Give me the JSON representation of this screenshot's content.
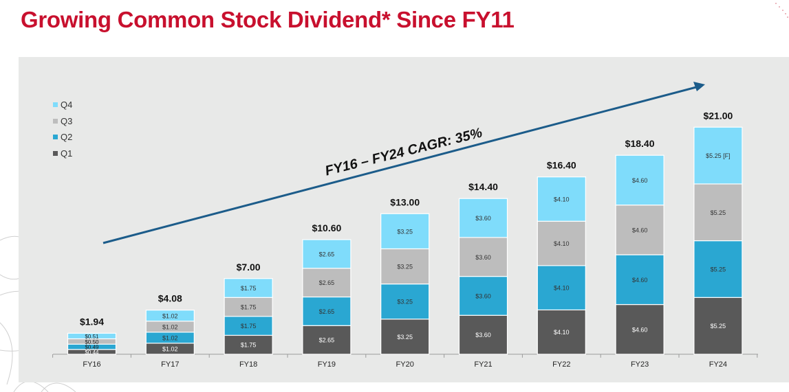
{
  "title": "Growing Common Stock Dividend* Since FY11",
  "cagr_label": "FY16 – FY24 CAGR: 35%",
  "colors": {
    "title": "#c8102e",
    "Q1": "#595959",
    "Q2": "#2aa7d2",
    "Q3": "#bdbdbd",
    "Q4": "#7fdcfb",
    "arrow": "#1c5c8a",
    "panel": "#e8e9e8"
  },
  "legend": [
    {
      "label": "Q4",
      "color": "#7fdcfb"
    },
    {
      "label": "Q3",
      "color": "#bdbdbd"
    },
    {
      "label": "Q2",
      "color": "#2aa7d2"
    },
    {
      "label": "Q1",
      "color": "#595959"
    }
  ],
  "chart_data": {
    "type": "bar",
    "stacked": true,
    "categories": [
      "FY16",
      "FY17",
      "FY18",
      "FY19",
      "FY20",
      "FY21",
      "FY22",
      "FY23",
      "FY24"
    ],
    "series": [
      {
        "name": "Q1",
        "values": [
          0.44,
          1.02,
          1.75,
          2.65,
          3.25,
          3.6,
          4.1,
          4.6,
          5.25
        ],
        "labels": [
          "$0.44",
          "$1.02",
          "$1.75",
          "$2.65",
          "$3.25",
          "$3.60",
          "$4.10",
          "$4.60",
          "$5.25"
        ]
      },
      {
        "name": "Q2",
        "values": [
          0.49,
          1.02,
          1.75,
          2.65,
          3.25,
          3.6,
          4.1,
          4.6,
          5.25
        ],
        "labels": [
          "$0.49",
          "$1.02",
          "$1.75",
          "$2.65",
          "$3.25",
          "$3.60",
          "$4.10",
          "$4.60",
          "$5.25"
        ]
      },
      {
        "name": "Q3",
        "values": [
          0.5,
          1.02,
          1.75,
          2.65,
          3.25,
          3.6,
          4.1,
          4.6,
          5.25
        ],
        "labels": [
          "$0.50",
          "$1.02",
          "$1.75",
          "$2.65",
          "$3.25",
          "$3.60",
          "$4.10",
          "$4.60",
          "$5.25"
        ]
      },
      {
        "name": "Q4",
        "values": [
          0.51,
          1.02,
          1.75,
          2.65,
          3.25,
          3.6,
          4.1,
          4.6,
          5.25
        ],
        "labels": [
          "$0.51",
          "$1.02",
          "$1.75",
          "$2.65",
          "$3.25",
          "$3.60",
          "$4.10",
          "$4.60",
          "$5.25 [F]"
        ]
      }
    ],
    "totals": [
      1.94,
      4.08,
      7.0,
      10.6,
      13.0,
      14.4,
      16.4,
      18.4,
      21.0
    ],
    "total_labels": [
      "$1.94",
      "$4.08",
      "$7.00",
      "$10.60",
      "$13.00",
      "$14.40",
      "$16.40",
      "$18.40",
      "$21.00"
    ],
    "legend_position": "top-left",
    "grid": false,
    "ylim": [
      0,
      21
    ]
  }
}
